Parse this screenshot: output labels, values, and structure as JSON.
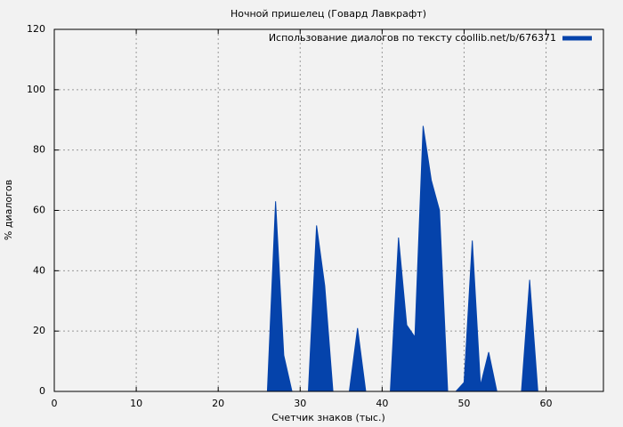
{
  "chart_data": {
    "type": "area",
    "title": "Ночной пришелец (Говард Лавкрафт)",
    "xlabel": "Счетчик знаков (тыс.)",
    "ylabel": "% диалогов",
    "x": [
      0,
      1,
      2,
      3,
      4,
      5,
      6,
      7,
      8,
      9,
      10,
      11,
      12,
      13,
      14,
      15,
      16,
      17,
      18,
      19,
      20,
      21,
      22,
      23,
      24,
      25,
      26,
      27,
      28,
      29,
      30,
      31,
      32,
      33,
      34,
      35,
      36,
      37,
      38,
      39,
      40,
      41,
      42,
      43,
      44,
      45,
      46,
      47,
      48,
      49,
      50,
      51,
      52,
      53,
      54,
      55,
      56,
      57,
      58,
      59,
      60,
      61,
      62,
      63,
      64,
      65,
      66
    ],
    "series": [
      {
        "name": "Использование диалогов по тексту coollib.net/b/676371",
        "color": "#0543ab",
        "values": [
          0,
          0,
          0,
          0,
          0,
          0,
          0,
          0,
          0,
          0,
          0,
          0,
          0,
          0,
          0,
          0,
          0,
          0,
          0,
          0,
          0,
          0,
          0,
          0,
          0,
          0,
          0,
          63,
          12,
          0,
          0,
          0,
          55,
          35,
          0,
          0,
          0,
          21,
          0,
          0,
          0,
          0,
          51,
          22,
          18,
          88,
          70,
          60,
          0,
          0,
          3,
          50,
          2,
          13,
          0,
          0,
          0,
          0,
          37,
          0,
          0,
          0,
          0,
          0,
          0,
          0,
          0
        ]
      }
    ],
    "xlim": [
      0,
      67
    ],
    "ylim": [
      0,
      120
    ],
    "xticks": [
      0,
      10,
      20,
      30,
      40,
      50,
      60
    ],
    "yticks": [
      0,
      20,
      40,
      60,
      80,
      100,
      120
    ],
    "grid": true,
    "legend": "upper right"
  }
}
